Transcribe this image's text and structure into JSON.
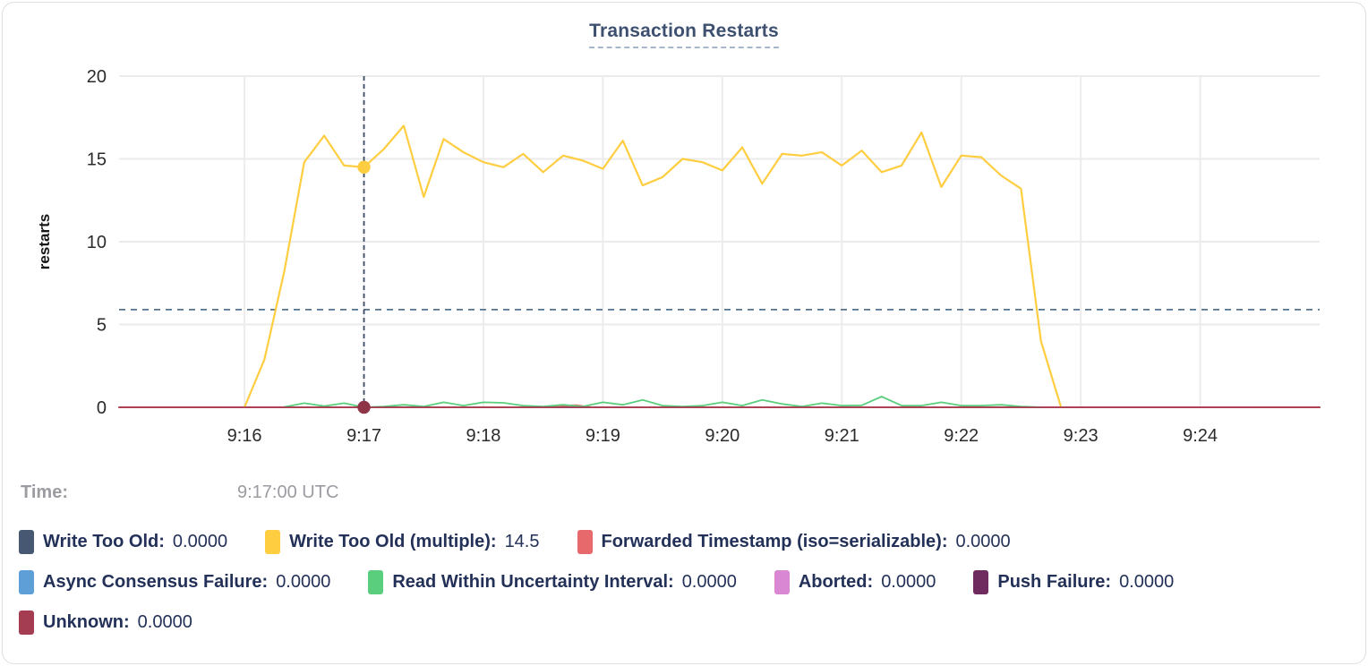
{
  "chart": {
    "title": "Transaction Restarts"
  },
  "tooltip": {
    "time_label": "Time:",
    "time_value": "9:17:00 UTC"
  },
  "legend": {
    "rows": [
      [
        {
          "label": "Write Too Old",
          "value": "0.0000",
          "color": "#475872"
        },
        {
          "label": "Write Too Old (multiple)",
          "value": "14.5",
          "color": "#FFCD40"
        },
        {
          "label": "Forwarded Timestamp (iso=serializable)",
          "value": "0.0000",
          "color": "#E8696B"
        }
      ],
      [
        {
          "label": "Async Consensus Failure",
          "value": "0.0000",
          "color": "#5F9FD8"
        },
        {
          "label": "Read Within Uncertainty Interval",
          "value": "0.0000",
          "color": "#5BCE7E"
        },
        {
          "label": "Aborted",
          "value": "0.0000",
          "color": "#D986D3"
        },
        {
          "label": "Push Failure",
          "value": "0.0000",
          "color": "#6F2A5E"
        }
      ],
      [
        {
          "label": "Unknown",
          "value": "0.0000",
          "color": "#A43D52"
        }
      ]
    ]
  },
  "chart_data": {
    "type": "line",
    "title": "Transaction Restarts",
    "ylabel": "restarts",
    "ylim": [
      0,
      20
    ],
    "y_ticks": [
      0,
      5,
      10,
      15,
      20
    ],
    "x_unit": "minutes after 9:15:00 UTC",
    "x_domain": [
      -0.05,
      10.0
    ],
    "x_ticks": [
      {
        "t": 1,
        "label": "9:16"
      },
      {
        "t": 2,
        "label": "9:17"
      },
      {
        "t": 3,
        "label": "9:18"
      },
      {
        "t": 4,
        "label": "9:19"
      },
      {
        "t": 5,
        "label": "9:20"
      },
      {
        "t": 6,
        "label": "9:21"
      },
      {
        "t": 7,
        "label": "9:22"
      },
      {
        "t": 8,
        "label": "9:23"
      },
      {
        "t": 9,
        "label": "9:24"
      }
    ],
    "grid": true,
    "threshold_line": {
      "value": 5.9,
      "color": "#54738F",
      "style": "dashed"
    },
    "hover": {
      "t": 2.0,
      "time": "9:17:00 UTC",
      "points": [
        {
          "series": "Write Too Old (multiple)",
          "value": 14.5,
          "color": "#FFCD40"
        },
        {
          "series": "Unknown",
          "value": 0.0,
          "color": "#8E3547"
        }
      ]
    },
    "series": [
      {
        "name": "Write Too Old",
        "color": "#475872",
        "width": 1.6,
        "points": [
          [
            -0.05,
            0
          ],
          [
            10.0,
            0
          ]
        ]
      },
      {
        "name": "Async Consensus Failure",
        "color": "#5F9FD8",
        "width": 1.6,
        "points": [
          [
            -0.05,
            0
          ],
          [
            10.0,
            0
          ]
        ]
      },
      {
        "name": "Aborted",
        "color": "#D986D3",
        "width": 1.6,
        "points": [
          [
            -0.05,
            0
          ],
          [
            10.0,
            0
          ]
        ]
      },
      {
        "name": "Push Failure",
        "color": "#6F2A5E",
        "width": 1.6,
        "points": [
          [
            -0.05,
            0
          ],
          [
            10.0,
            0
          ]
        ]
      },
      {
        "name": "Forwarded Timestamp (iso=serializable)",
        "color": "#E8696B",
        "width": 2,
        "points": [
          [
            -0.05,
            0
          ],
          [
            3.55,
            0
          ],
          [
            3.667,
            0.1
          ],
          [
            3.78,
            0.12
          ],
          [
            3.9,
            0
          ],
          [
            10.0,
            0
          ]
        ]
      },
      {
        "name": "Read Within Uncertainty Interval",
        "color": "#5BCE7E",
        "width": 1.8,
        "points": [
          [
            1.333,
            0.02
          ],
          [
            1.5,
            0.25
          ],
          [
            1.667,
            0.07
          ],
          [
            1.833,
            0.25
          ],
          [
            2.0,
            0.0
          ],
          [
            2.167,
            0.05
          ],
          [
            2.333,
            0.15
          ],
          [
            2.5,
            0.05
          ],
          [
            2.667,
            0.3
          ],
          [
            2.833,
            0.1
          ],
          [
            3.0,
            0.3
          ],
          [
            3.167,
            0.27
          ],
          [
            3.333,
            0.1
          ],
          [
            3.5,
            0.05
          ],
          [
            3.667,
            0.15
          ],
          [
            3.833,
            0.05
          ],
          [
            4.0,
            0.3
          ],
          [
            4.167,
            0.15
          ],
          [
            4.333,
            0.45
          ],
          [
            4.5,
            0.1
          ],
          [
            4.667,
            0.05
          ],
          [
            4.833,
            0.1
          ],
          [
            5.0,
            0.3
          ],
          [
            5.167,
            0.1
          ],
          [
            5.333,
            0.45
          ],
          [
            5.5,
            0.2
          ],
          [
            5.667,
            0.05
          ],
          [
            5.833,
            0.25
          ],
          [
            6.0,
            0.1
          ],
          [
            6.167,
            0.12
          ],
          [
            6.333,
            0.65
          ],
          [
            6.5,
            0.1
          ],
          [
            6.667,
            0.1
          ],
          [
            6.833,
            0.3
          ],
          [
            7.0,
            0.1
          ],
          [
            7.167,
            0.1
          ],
          [
            7.333,
            0.15
          ],
          [
            7.5,
            0.05
          ],
          [
            7.667,
            0.0
          ]
        ]
      },
      {
        "name": "Write Too Old (multiple)",
        "color": "#FFCD40",
        "width": 2.2,
        "points": [
          [
            1.0,
            0
          ],
          [
            1.167,
            2.9
          ],
          [
            1.333,
            8.2
          ],
          [
            1.5,
            14.8
          ],
          [
            1.667,
            16.4
          ],
          [
            1.833,
            14.6
          ],
          [
            2.0,
            14.5
          ],
          [
            2.167,
            15.6
          ],
          [
            2.333,
            17.0
          ],
          [
            2.5,
            12.7
          ],
          [
            2.667,
            16.2
          ],
          [
            2.833,
            15.4
          ],
          [
            3.0,
            14.8
          ],
          [
            3.167,
            14.5
          ],
          [
            3.333,
            15.3
          ],
          [
            3.5,
            14.2
          ],
          [
            3.667,
            15.2
          ],
          [
            3.833,
            14.9
          ],
          [
            4.0,
            14.4
          ],
          [
            4.167,
            16.1
          ],
          [
            4.333,
            13.4
          ],
          [
            4.5,
            13.9
          ],
          [
            4.667,
            15.0
          ],
          [
            4.833,
            14.8
          ],
          [
            5.0,
            14.3
          ],
          [
            5.167,
            15.7
          ],
          [
            5.333,
            13.5
          ],
          [
            5.5,
            15.3
          ],
          [
            5.667,
            15.2
          ],
          [
            5.833,
            15.4
          ],
          [
            6.0,
            14.6
          ],
          [
            6.167,
            15.5
          ],
          [
            6.333,
            14.2
          ],
          [
            6.5,
            14.6
          ],
          [
            6.667,
            16.6
          ],
          [
            6.833,
            13.3
          ],
          [
            7.0,
            15.2
          ],
          [
            7.167,
            15.1
          ],
          [
            7.333,
            14.0
          ],
          [
            7.5,
            13.2
          ],
          [
            7.667,
            4.0
          ],
          [
            7.833,
            0.05
          ]
        ]
      },
      {
        "name": "Unknown",
        "color": "#A43D52",
        "width": 1.8,
        "points": [
          [
            -0.05,
            0
          ],
          [
            10.0,
            0
          ]
        ]
      }
    ]
  }
}
